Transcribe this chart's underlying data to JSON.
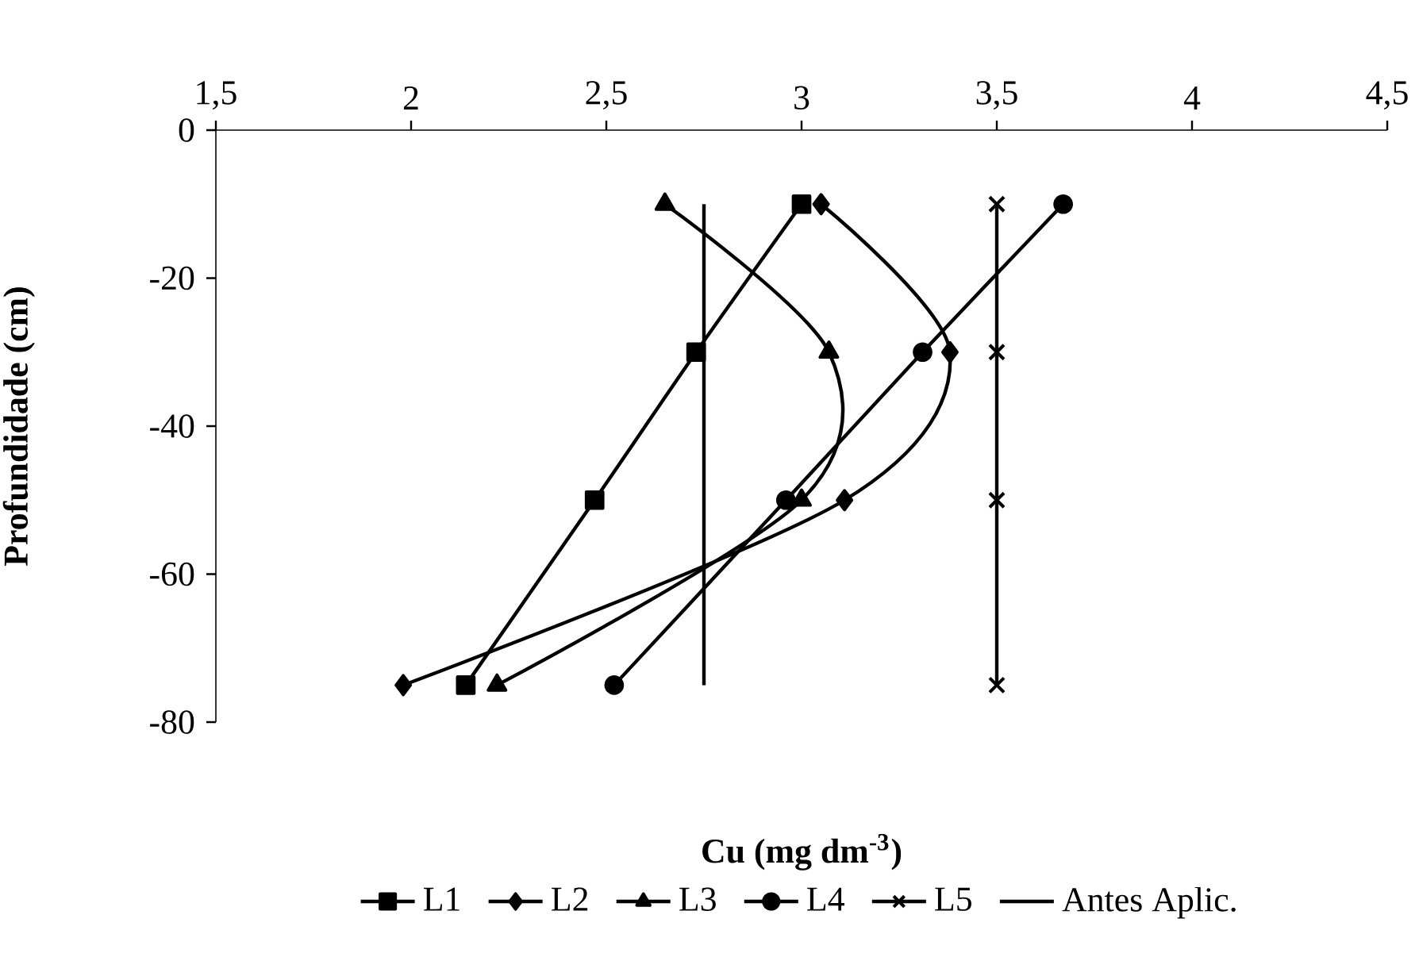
{
  "chart_data": {
    "type": "line",
    "xlabel": "**Cu (mg dm$^{-3}$)**",
    "ylabel": "**Profundidade (cm)**",
    "xlim": [
      1.5,
      4.5
    ],
    "xticks": [
      {
        "value": 1.5,
        "label": "1,5"
      },
      2,
      {
        "value": 2.5,
        "label": "2,5"
      },
      3,
      {
        "value": 3.5,
        "label": "3,5"
      },
      4,
      {
        "value": 4.5,
        "label": "4,5"
      }
    ],
    "ylim": [
      -80,
      0
    ],
    "yticks": [
      -80,
      -60,
      -40,
      -20,
      0
    ],
    "grid": false,
    "legend": "bottom",
    "series": [
      {
        "name": "L1",
        "color": "#000000",
        "marker": "square",
        "x": [
          3.0,
          2.73,
          2.47,
          2.14
        ],
        "values": [
          -10,
          -30,
          -50,
          -75
        ]
      },
      {
        "name": "L2",
        "color": "#000000",
        "marker": "diamond",
        "x": [
          3.05,
          3.38,
          3.11,
          1.98
        ],
        "values": [
          -10,
          -30,
          -50,
          -75
        ]
      },
      {
        "name": "L3",
        "color": "#000000",
        "marker": "triangle",
        "x": [
          2.65,
          3.07,
          3.0,
          2.22
        ],
        "values": [
          -10,
          -30,
          -50,
          -75
        ]
      },
      {
        "name": "L4",
        "color": "#000000",
        "marker": "circle",
        "x": [
          3.67,
          3.31,
          2.96,
          2.52
        ],
        "values": [
          -10,
          -30,
          -50,
          -75
        ]
      },
      {
        "name": "L5",
        "color": "#000000",
        "marker": "cross",
        "x": [
          3.5,
          3.5,
          3.5,
          3.5
        ],
        "values": [
          -10,
          -30,
          -50,
          -75
        ]
      },
      {
        "name": "Antes Aplic.",
        "color": "#000000",
        "marker": "none",
        "x": [
          2.75,
          2.75
        ],
        "values": [
          -10,
          -75
        ]
      }
    ]
  }
}
